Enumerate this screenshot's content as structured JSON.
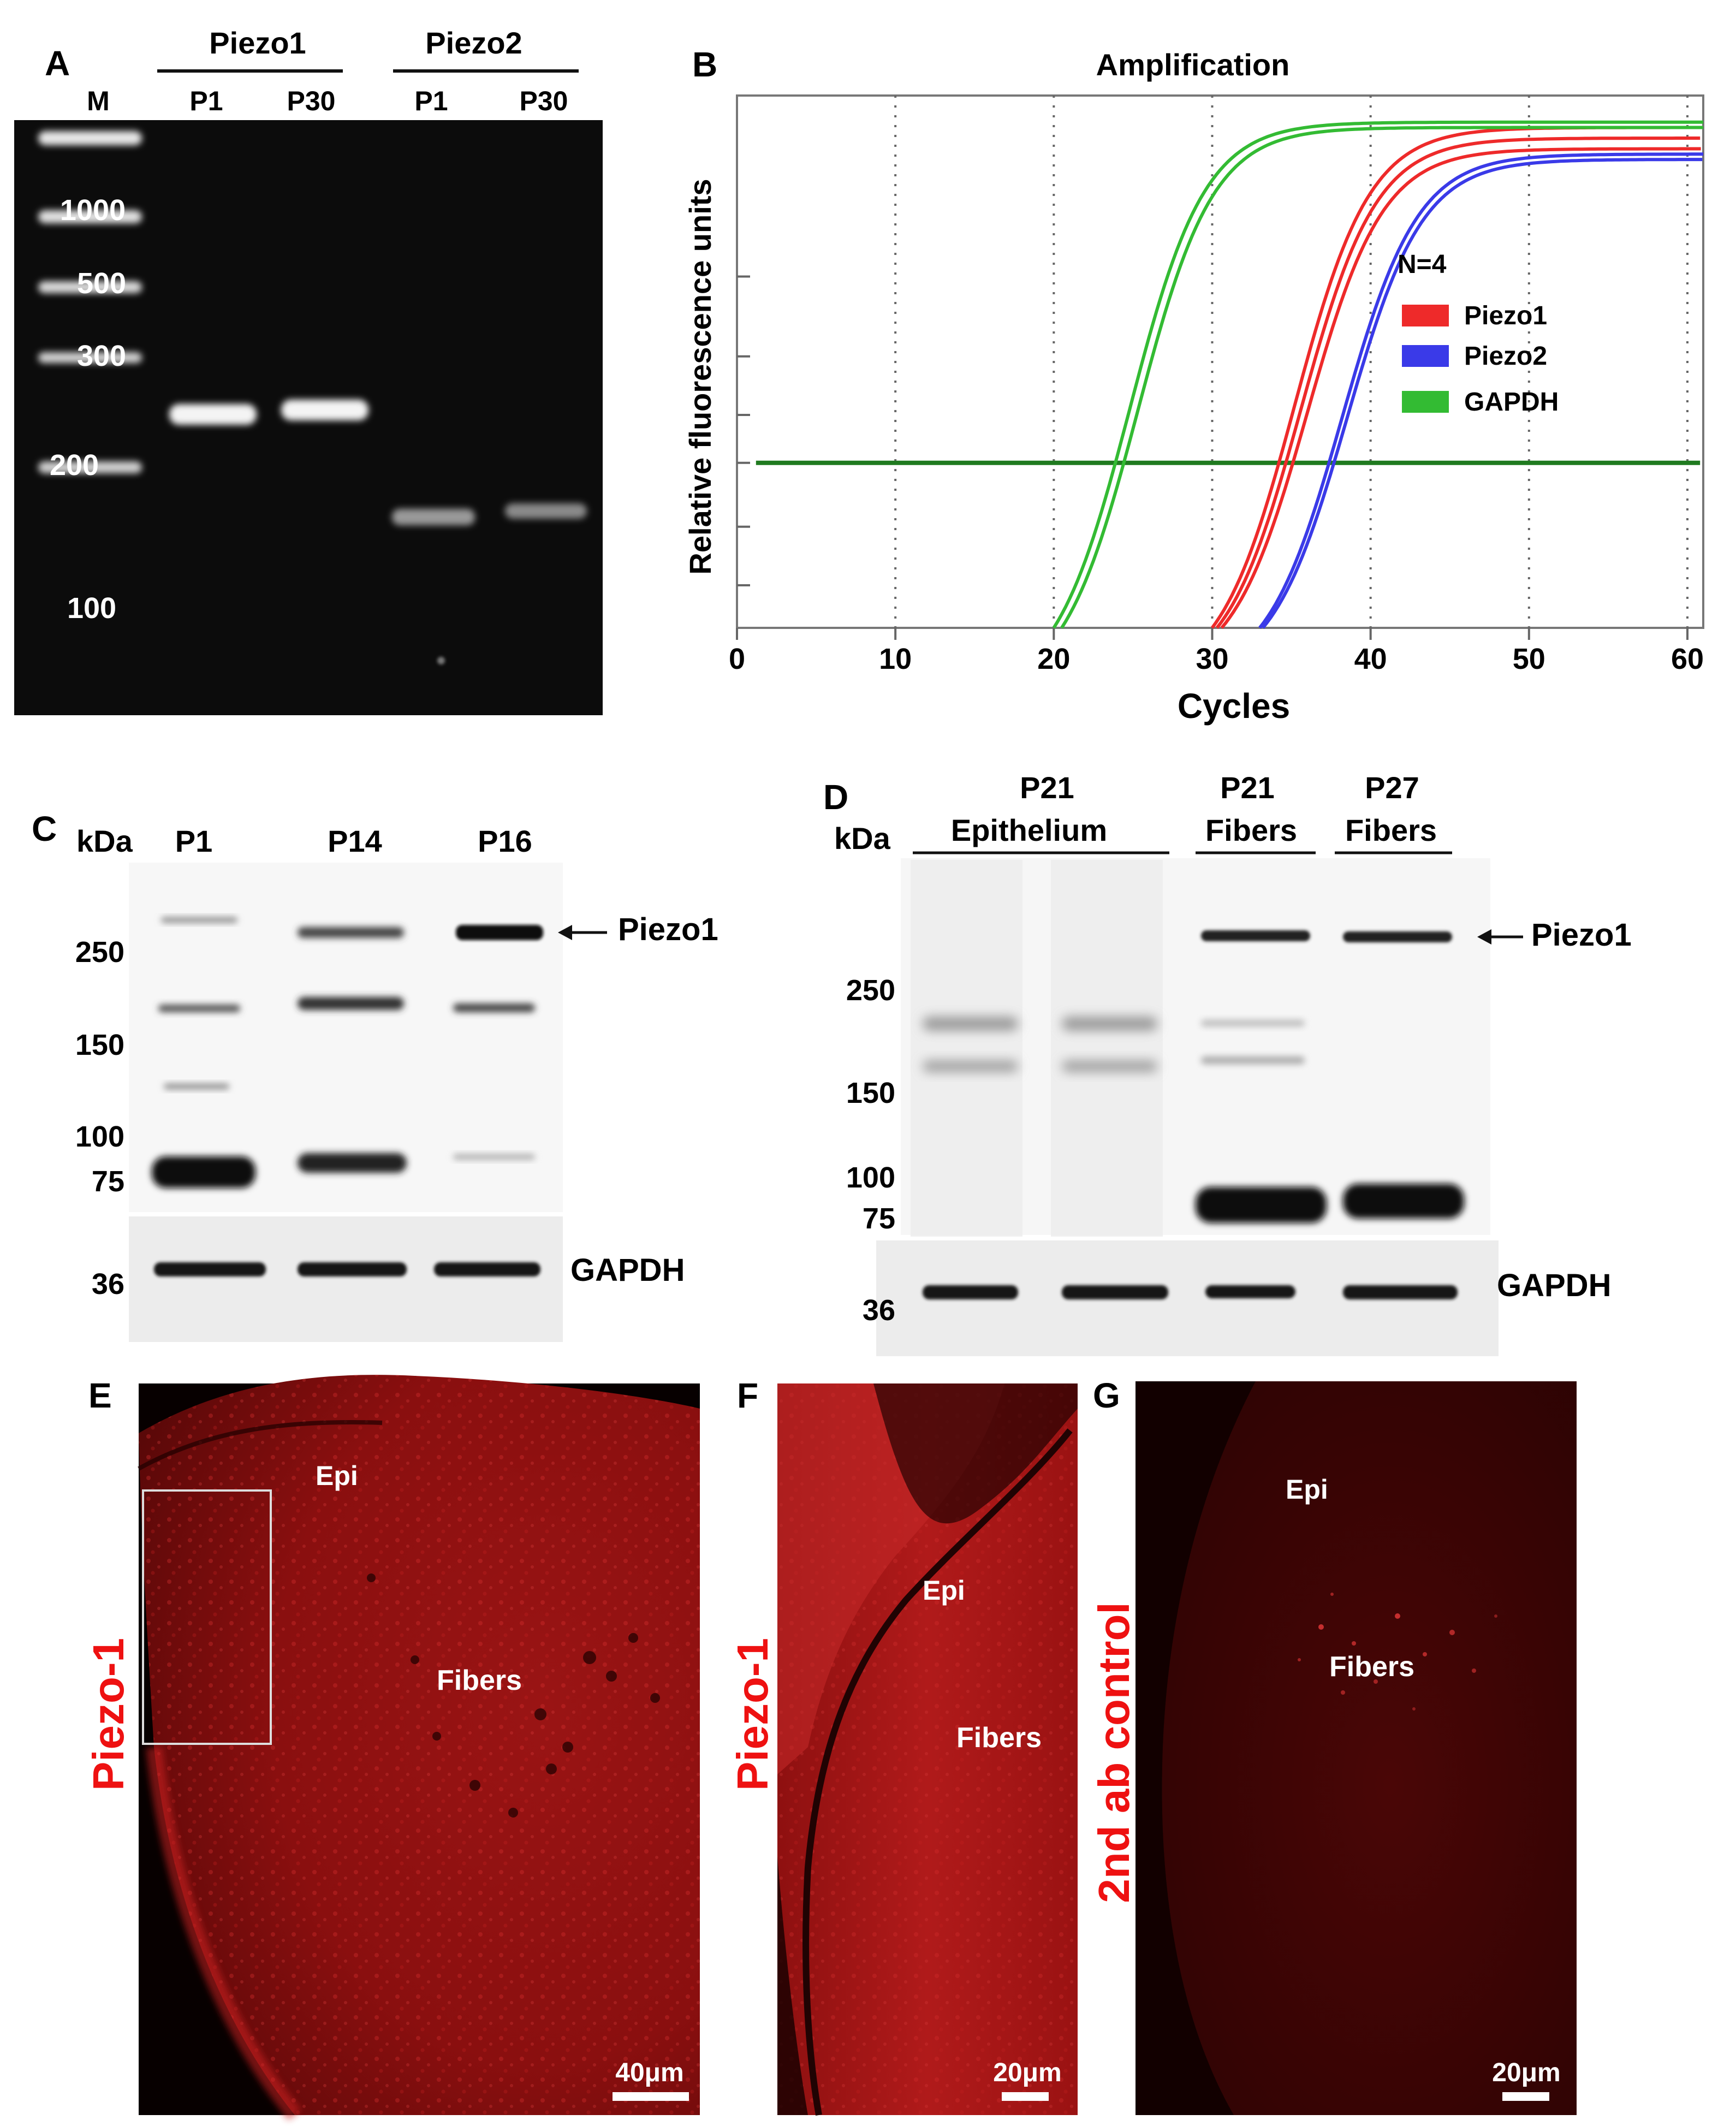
{
  "panelA": {
    "letter": "A",
    "marker_label": "M",
    "groups": [
      {
        "name": "Piezo1",
        "lanes": [
          "P1",
          "P30"
        ]
      },
      {
        "name": "Piezo2",
        "lanes": [
          "P1",
          "P30"
        ]
      }
    ],
    "ladder": [
      "1000",
      "500",
      "300",
      "200",
      "100"
    ]
  },
  "panelB": {
    "letter": "B",
    "legend_title": "N=4",
    "colors": {
      "Piezo1": "#ee2a2a",
      "Piezo2": "#3a3ae8",
      "GAPDH": "#33bb33",
      "threshold": "#1f7a1f"
    },
    "chart_data": {
      "type": "line",
      "title": "Amplification",
      "xlabel": "Cycles",
      "ylabel": "Relative fluorescence units",
      "xlim": [
        0,
        61
      ],
      "xticks": [
        "0",
        "10",
        "20",
        "30",
        "40",
        "50",
        "60"
      ],
      "grid": "vertical dotted",
      "legend_position": "right",
      "threshold_fraction": 0.31,
      "series": [
        {
          "name": "Piezo1",
          "color": "#ee2a2a",
          "replicates": [
            {
              "start_cycle": 30.0,
              "midpoint": 35.2,
              "plateau_fraction": 0.94
            },
            {
              "start_cycle": 30.3,
              "midpoint": 35.6,
              "plateau_fraction": 0.92
            },
            {
              "start_cycle": 30.6,
              "midpoint": 36.0,
              "plateau_fraction": 0.9
            }
          ]
        },
        {
          "name": "Piezo2",
          "color": "#3a3ae8",
          "replicates": [
            {
              "start_cycle": 33.0,
              "midpoint": 38.2,
              "plateau_fraction": 0.89
            },
            {
              "start_cycle": 33.2,
              "midpoint": 38.5,
              "plateau_fraction": 0.88
            }
          ]
        },
        {
          "name": "GAPDH",
          "color": "#33bb33",
          "replicates": [
            {
              "start_cycle": 20.0,
              "midpoint": 24.8,
              "plateau_fraction": 0.95
            },
            {
              "start_cycle": 20.5,
              "midpoint": 25.3,
              "plateau_fraction": 0.94
            }
          ]
        }
      ]
    }
  },
  "panelC": {
    "letter": "C",
    "unit": "kDa",
    "lanes": [
      "P1",
      "P14",
      "P16"
    ],
    "markers": [
      "250",
      "150",
      "100",
      "75",
      "36"
    ],
    "target_label": "Piezo1",
    "loading_label": "GAPDH"
  },
  "panelD": {
    "letter": "D",
    "unit": "kDa",
    "groups": [
      {
        "line1": "P21",
        "line2": "Epithelium"
      },
      {
        "line1": "P21",
        "line2": "Fibers"
      },
      {
        "line1": "P27",
        "line2": "Fibers"
      }
    ],
    "markers": [
      "250",
      "150",
      "100",
      "75",
      "36"
    ],
    "target_label": "Piezo1",
    "loading_label": "GAPDH"
  },
  "panelE": {
    "letter": "E",
    "side_label": "Piezo-1",
    "region_epi": "Epi",
    "region_fibers": "Fibers",
    "scale": "40μm"
  },
  "panelF": {
    "letter": "F",
    "side_label": "Piezo-1",
    "region_epi": "Epi",
    "region_fibers": "Fibers",
    "scale": "20μm"
  },
  "panelG": {
    "letter": "G",
    "side_label": "2nd ab control",
    "region_epi": "Epi",
    "region_fibers": "Fibers",
    "scale": "20μm"
  }
}
